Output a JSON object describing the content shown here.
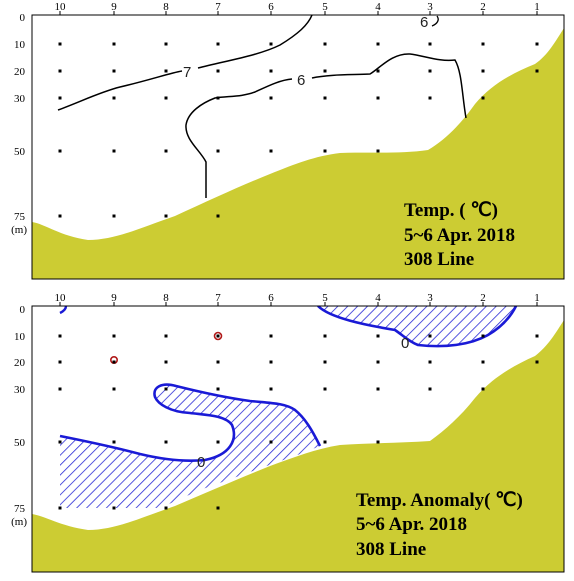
{
  "sections": [
    {
      "id": "temp",
      "title_lines": [
        "Temp. ( ℃)",
        "5~6 Apr. 2018",
        "308 Line"
      ],
      "station_labels": [
        "10",
        "9",
        "8",
        "7",
        "6",
        "5",
        "4",
        "3",
        "2",
        "1"
      ],
      "depth_labels": [
        "0",
        "10",
        "20",
        "30",
        "50",
        "75"
      ],
      "unit_label": "(m)",
      "contour_labels": [
        "7",
        "6",
        "6"
      ],
      "colors": {
        "land": "#cccc33",
        "contour": "#000000",
        "frame": "#000000"
      }
    },
    {
      "id": "anomaly",
      "title_lines": [
        "Temp. Anomaly( ℃)",
        "5~6 Apr. 2018",
        "308 Line"
      ],
      "station_labels": [
        "10",
        "9",
        "8",
        "7",
        "6",
        "5",
        "4",
        "3",
        "2",
        "1"
      ],
      "depth_labels": [
        "0",
        "10",
        "20",
        "30",
        "50",
        "75"
      ],
      "unit_label": "(m)",
      "contour_labels": [
        "0",
        "0"
      ],
      "colors": {
        "land": "#cccc33",
        "contour": "#1a1ad6",
        "hatch": "#2a2ad6",
        "small_contour": "#b01818",
        "frame": "#000000"
      }
    }
  ]
}
